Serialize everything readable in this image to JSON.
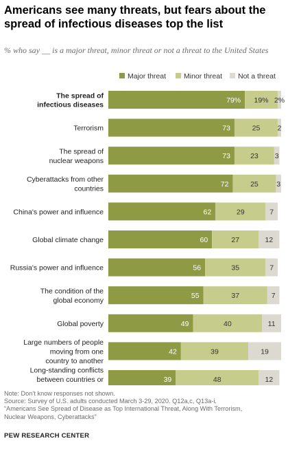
{
  "title": "Americans see many threats, but fears about the spread of infectious diseases top the list",
  "subtitle": "% who say __ is a major threat, minor threat or not a threat to the United States",
  "notes": {
    "note": "Note: Don’t know responses not shown.",
    "source": "Source: Survey of U.S. adults conducted March 3-29, 2020. Q12a,c, Q13a-i.",
    "report_line1": "“Americans See Spread of Disease as Top International Threat, Along With Terrorism,",
    "report_line2": "Nuclear Weapons, Cyberattacks”"
  },
  "brand": "PEW RESEARCH CENTER",
  "colors": {
    "major": "#8f9a44",
    "minor": "#c6cd8c",
    "not": "#dcd9d0"
  },
  "chart_data": {
    "type": "bar",
    "orientation": "horizontal",
    "stacked": true,
    "categories": [
      [
        "The spread of",
        "infectious diseases"
      ],
      [
        "Terrorism"
      ],
      [
        "The spread of",
        "nuclear weapons"
      ],
      [
        "Cyberattacks from other",
        "countries"
      ],
      [
        "China's power and influence"
      ],
      [
        "Global climate change"
      ],
      [
        "Russia's power and influence"
      ],
      [
        "The condition of the",
        "global economy"
      ],
      [
        "Global poverty"
      ],
      [
        "Large numbers of people",
        "moving from one",
        "country to another"
      ],
      [
        "Long-standing conflicts",
        "between countries or",
        "ethnic groups"
      ]
    ],
    "highlight_first_category": true,
    "series": [
      {
        "name": "Major threat",
        "values": [
          79,
          73,
          73,
          72,
          62,
          60,
          56,
          55,
          49,
          42,
          39
        ]
      },
      {
        "name": "Minor threat",
        "values": [
          19,
          25,
          23,
          25,
          29,
          27,
          35,
          37,
          40,
          39,
          48
        ]
      },
      {
        "name": "Not a threat",
        "values": [
          2,
          2,
          3,
          3,
          7,
          12,
          7,
          7,
          11,
          19,
          12
        ]
      }
    ],
    "first_row_percent_labels": [
      "79%",
      "19%",
      "2%"
    ],
    "legend_position": "top",
    "xlim": [
      0,
      100
    ],
    "grid": false
  }
}
